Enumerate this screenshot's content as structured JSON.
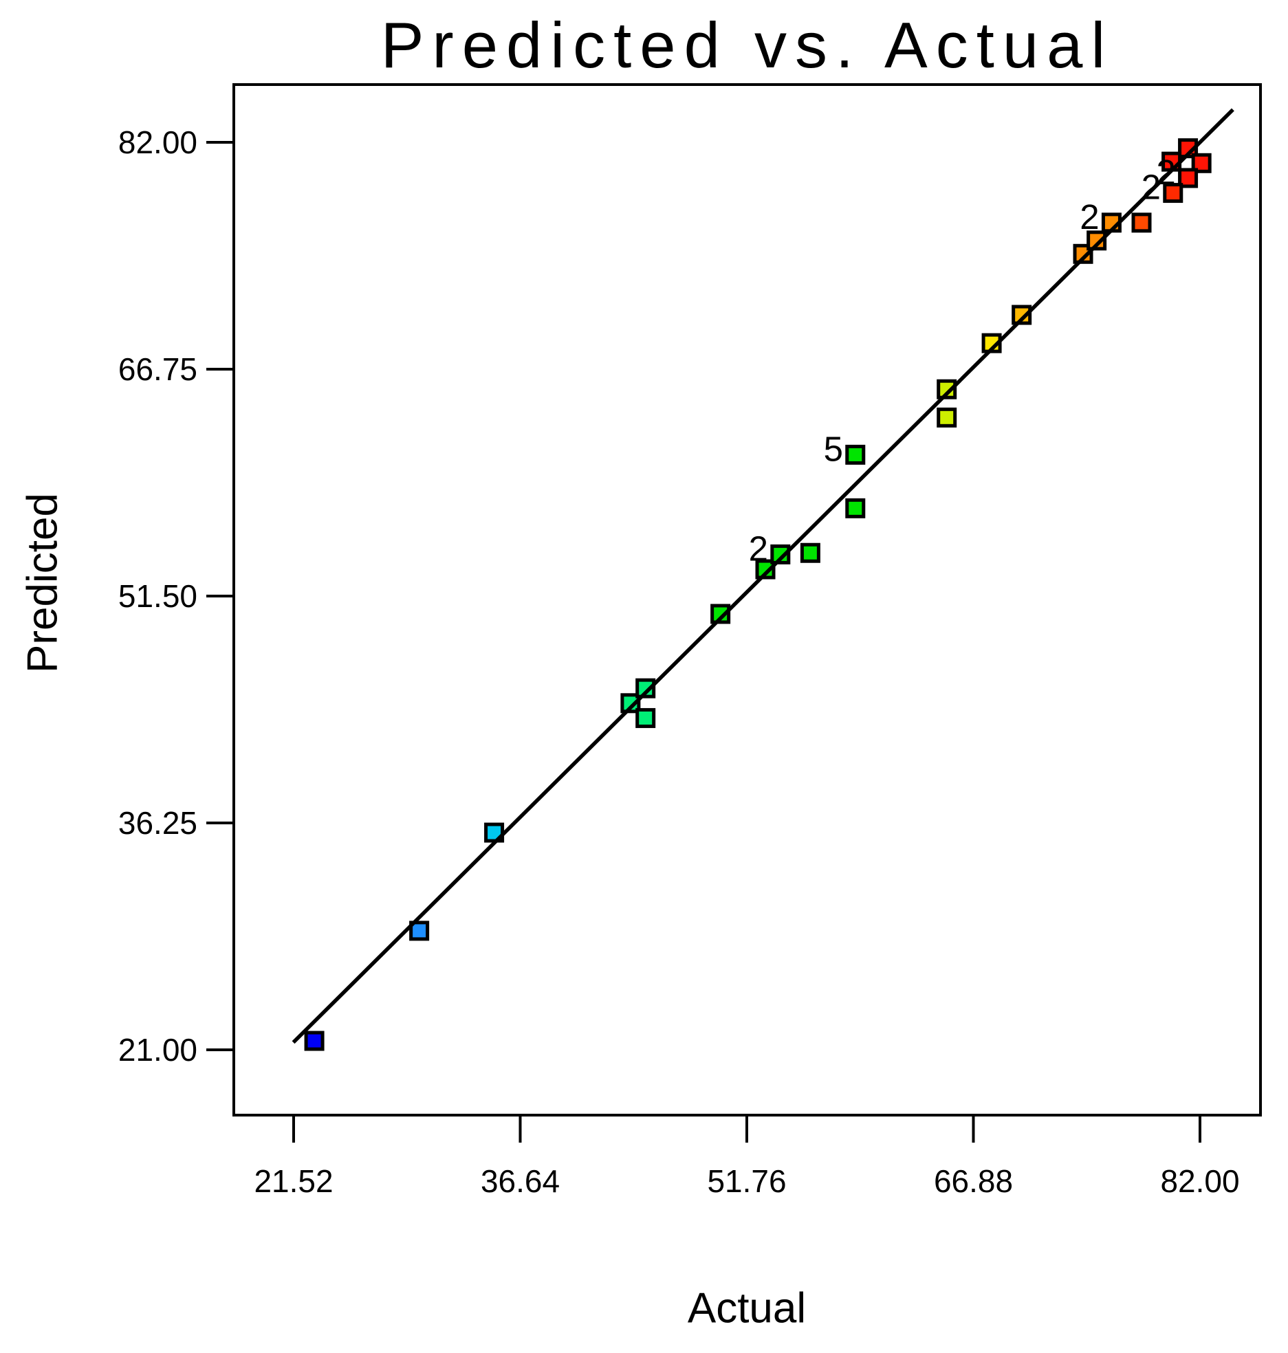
{
  "title": "Predicted vs. Actual",
  "x_axis": {
    "label": "Actual",
    "tick_labels": [
      "21.52",
      "36.64",
      "51.76",
      "66.88",
      "82.00"
    ]
  },
  "y_axis": {
    "label": "Predicted",
    "tick_labels": [
      "21.00",
      "36.25",
      "51.50",
      "66.75",
      "82.00"
    ]
  },
  "chart_data": {
    "type": "scatter",
    "title": "Predicted vs. Actual",
    "xlabel": "Actual",
    "ylabel": "Predicted",
    "x_ticks": [
      21.52,
      36.64,
      51.76,
      66.88,
      82.0
    ],
    "y_ticks": [
      21.0,
      36.25,
      51.5,
      66.75,
      82.0
    ],
    "xlim": [
      17.5,
      86.1
    ],
    "ylim": [
      16.6,
      85.9
    ],
    "grid": false,
    "legend": "none",
    "reference_line": {
      "type": "identity",
      "description": "predicted = actual 45-degree line",
      "from": 21.5,
      "to": 84.2,
      "color": "#000000"
    },
    "marker": {
      "shape": "square",
      "fill_size_px": 24,
      "border_color": "#000000",
      "border_px": 5
    },
    "points": [
      {
        "actual": 22.9,
        "predicted": 21.6,
        "color": "#0000F5"
      },
      {
        "actual": 29.9,
        "predicted": 29.0,
        "color": "#1E8FFF"
      },
      {
        "actual": 34.9,
        "predicted": 35.6,
        "color": "#00C8F0"
      },
      {
        "actual": 44.0,
        "predicted": 44.3,
        "color": "#00EE76"
      },
      {
        "actual": 45.0,
        "predicted": 45.3,
        "color": "#00EE76"
      },
      {
        "actual": 45.0,
        "predicted": 43.3,
        "color": "#00EE76"
      },
      {
        "actual": 50.0,
        "predicted": 50.3,
        "color": "#00E400"
      },
      {
        "actual": 53.0,
        "predicted": 53.3,
        "color": "#00E400"
      },
      {
        "actual": 54.0,
        "predicted": 54.3,
        "color": "#00E400",
        "count": "2"
      },
      {
        "actual": 56.0,
        "predicted": 54.4,
        "color": "#00E400"
      },
      {
        "actual": 59.0,
        "predicted": 61.0,
        "color": "#00E400",
        "count": "5"
      },
      {
        "actual": 59.0,
        "predicted": 57.4,
        "color": "#00E400"
      },
      {
        "actual": 65.1,
        "predicted": 65.4,
        "color": "#CDEE00"
      },
      {
        "actual": 65.1,
        "predicted": 63.5,
        "color": "#CDEE00"
      },
      {
        "actual": 68.1,
        "predicted": 68.5,
        "color": "#FFE600"
      },
      {
        "actual": 70.1,
        "predicted": 70.4,
        "color": "#FFB800"
      },
      {
        "actual": 74.2,
        "predicted": 74.5,
        "color": "#FF8C00"
      },
      {
        "actual": 75.1,
        "predicted": 75.4,
        "color": "#FF8C00"
      },
      {
        "actual": 76.1,
        "predicted": 76.6,
        "color": "#FF8C00",
        "count": "2"
      },
      {
        "actual": 78.1,
        "predicted": 76.6,
        "color": "#FF4A00"
      },
      {
        "actual": 81.2,
        "predicted": 81.6,
        "color": "#FF1405"
      },
      {
        "actual": 80.1,
        "predicted": 80.7,
        "color": "#FF1405"
      },
      {
        "actual": 82.1,
        "predicted": 80.6,
        "color": "#FF1405"
      },
      {
        "actual": 81.2,
        "predicted": 79.6,
        "color": "#FF1405",
        "count": "2"
      },
      {
        "actual": 80.2,
        "predicted": 78.6,
        "color": "#FF2A00",
        "count": "2"
      }
    ]
  }
}
